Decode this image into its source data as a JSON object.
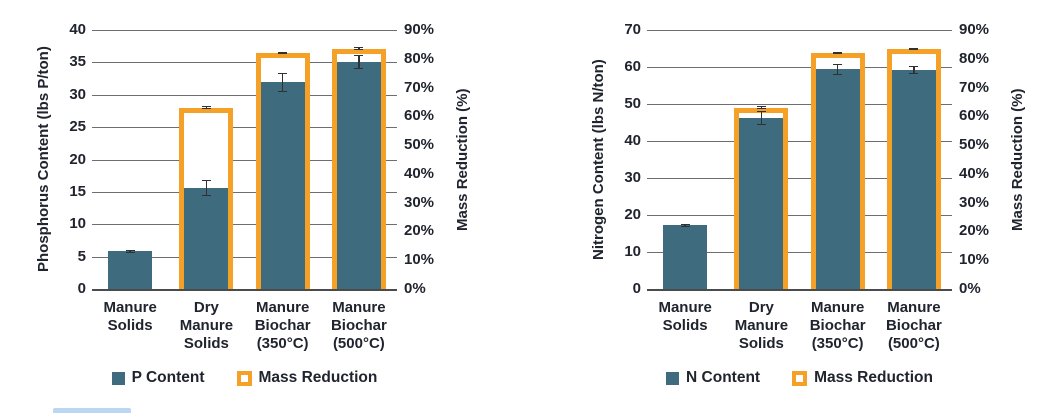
{
  "page": {
    "background": "#ffffff"
  },
  "colors": {
    "bar_fill": "#3e6b7e",
    "mass_reduction_outline": "#f5a026",
    "text": "#20242e",
    "gridline": "#6d6e71",
    "axis_baseline": "#4a4b4d",
    "error_bar": "#2f3133",
    "clipped_strip": "#bcd7f3"
  },
  "chart_data": [
    {
      "type": "bar",
      "title": "",
      "left_axis": {
        "title": "Phosphorus Content (lbs P/ton)",
        "min": 0,
        "max": 40,
        "ticks": [
          0,
          5,
          10,
          15,
          20,
          25,
          30,
          35,
          40
        ]
      },
      "right_axis": {
        "title": "Mass Reduction (%)",
        "min": 0,
        "max": 90,
        "ticks": [
          0,
          10,
          20,
          30,
          40,
          50,
          60,
          70,
          80,
          90
        ],
        "suffix": "%"
      },
      "categories": [
        "Manure Solids",
        "Dry Manure Solids",
        "Manure Biochar (350°C)",
        "Manure Biochar (500°C)"
      ],
      "category_lines": [
        [
          "Manure",
          "Solids"
        ],
        [
          "Dry",
          "Manure",
          "Solids"
        ],
        [
          "Manure",
          "Biochar",
          "(350°C)"
        ],
        [
          "Manure",
          "Biochar",
          "(500°C)"
        ]
      ],
      "series": [
        {
          "name": "P Content",
          "axis": "left",
          "type": "fill",
          "values": [
            5.8,
            15.6,
            31.9,
            35.0
          ],
          "errors": [
            0.2,
            1.2,
            1.4,
            1.1
          ]
        },
        {
          "name": "Mass Reduction",
          "axis": "right",
          "type": "outline",
          "values": [
            null,
            63,
            82,
            83.5
          ],
          "errors": [
            null,
            0.6,
            0.5,
            0.5
          ]
        }
      ],
      "legend": [
        {
          "label": "P Content",
          "swatch": "fill"
        },
        {
          "label": "Mass Reduction",
          "swatch": "outline"
        }
      ],
      "grid": true,
      "legend_position": "bottom"
    },
    {
      "type": "bar",
      "title": "",
      "left_axis": {
        "title": "Nitrogen Content (lbs N/ton)",
        "min": 0,
        "max": 70,
        "ticks": [
          0,
          10,
          20,
          30,
          40,
          50,
          60,
          70
        ]
      },
      "right_axis": {
        "title": "Mass Reduction (%)",
        "min": 0,
        "max": 90,
        "ticks": [
          0,
          10,
          20,
          30,
          40,
          50,
          60,
          70,
          80,
          90
        ],
        "suffix": "%"
      },
      "categories": [
        "Manure Solids",
        "Dry Manure Solids",
        "Manure Biochar (350°C)",
        "Manure Biochar (500°C)"
      ],
      "category_lines": [
        [
          "Manure",
          "Solids"
        ],
        [
          "Dry",
          "Manure",
          "Solids"
        ],
        [
          "Manure",
          "Biochar",
          "(350°C)"
        ],
        [
          "Manure",
          "Biochar",
          "(500°C)"
        ]
      ],
      "series": [
        {
          "name": "N Content",
          "axis": "left",
          "type": "fill",
          "values": [
            17.2,
            46.2,
            59.4,
            59.2
          ],
          "errors": [
            0.4,
            1.8,
            1.5,
            1.2
          ]
        },
        {
          "name": "Mass Reduction",
          "axis": "right",
          "type": "outline",
          "values": [
            null,
            63,
            82,
            83.5
          ],
          "errors": [
            null,
            0.6,
            0.4,
            0.4
          ]
        }
      ],
      "legend": [
        {
          "label": "N Content",
          "swatch": "fill"
        },
        {
          "label": "Mass Reduction",
          "swatch": "outline"
        }
      ],
      "grid": true,
      "legend_position": "bottom"
    }
  ]
}
